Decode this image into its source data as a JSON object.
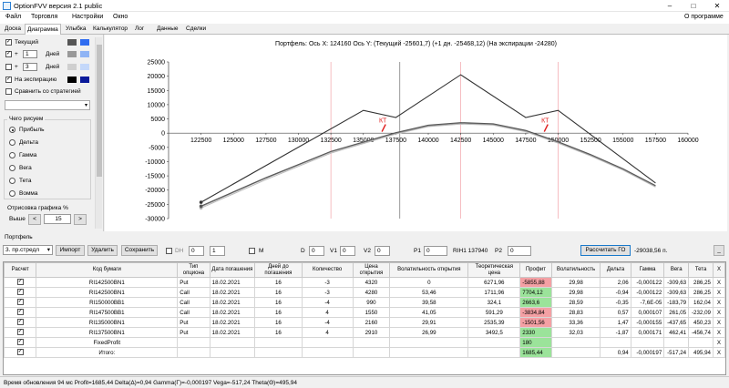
{
  "window": {
    "title": "OptionFVV версия 2.1 public",
    "minimize": "–",
    "maximize": "□",
    "close": "✕"
  },
  "menu": {
    "items": [
      "Файл",
      "Торговля",
      "Настройки",
      "Окно"
    ],
    "about": "О программе"
  },
  "tabs": [
    "Доска",
    "Диаграмма",
    "Улыбка",
    "Калькулятор",
    "Лог",
    "Данные",
    "Сделки"
  ],
  "tabs_active": 1,
  "left": {
    "rows": [
      {
        "label": "Текущий",
        "value": "",
        "unit": "",
        "colors": [
          "#555555",
          "#2f6cf0"
        ]
      },
      {
        "label": "+",
        "value": "1",
        "unit": "Дней",
        "colors": [
          "#999999",
          "#8fb4f5"
        ]
      },
      {
        "label": "+",
        "value": "3",
        "unit": "Дней",
        "colors": [
          "#cfcfcf",
          "#c4d8fa"
        ]
      },
      {
        "label": "На экспирацию",
        "value": "",
        "unit": "",
        "colors": [
          "#000000",
          "#0a1a9a"
        ]
      }
    ],
    "compare": "Сравнить со стратегией",
    "what_title": "Чего рисуем",
    "what_items": [
      "Прибыль",
      "Дельта",
      "Гамма",
      "Вега",
      "Тета",
      "Вомма"
    ],
    "render_title": "Отрисовка графика %",
    "above_label": "Выше",
    "above_value": "15",
    "prev": "<",
    "next": ">"
  },
  "chart_data": {
    "type": "line",
    "title": "Портфель: Ось X: 124160 Ось Y:  (Текущий -25601,7)  (+1 дн. -25468,12)  (На экспирации -24280)",
    "xlim": [
      120000,
      160000
    ],
    "ylim": [
      -30000,
      25000
    ],
    "x_ticks": [
      "122500",
      "125000",
      "127500",
      "130000",
      "132500",
      "135000",
      "137500",
      "140000",
      "142500",
      "145000",
      "147500",
      "150000",
      "152500",
      "155000",
      "157500",
      "160000"
    ],
    "y_ticks": [
      "25000",
      "20000",
      "15000",
      "10000",
      "5000",
      "0",
      "-5000",
      "-10000",
      "-15000",
      "-20000",
      "-25000",
      "-30000"
    ],
    "annotations": [
      {
        "text": "КТ",
        "x": 136500,
        "y": 5000
      },
      {
        "text": "КТ",
        "x": 149000,
        "y": 5000
      }
    ],
    "cursor_x": 137800,
    "ref_lines_x": [
      132500,
      142500,
      150000
    ],
    "series": [
      {
        "name": "На экспирации",
        "color": "#333333",
        "points": [
          [
            122500,
            -24280
          ],
          [
            135000,
            8000
          ],
          [
            137500,
            5500
          ],
          [
            142500,
            20500
          ],
          [
            147500,
            5500
          ],
          [
            150000,
            8000
          ],
          [
            157500,
            -17500
          ]
        ]
      },
      {
        "name": "+3 Дней",
        "color": "#bbbbbb",
        "points": [
          [
            122500,
            -26300
          ],
          [
            127500,
            -16300
          ],
          [
            132500,
            -7000
          ],
          [
            137500,
            -300
          ],
          [
            140000,
            2300
          ],
          [
            142500,
            3200
          ],
          [
            145000,
            2800
          ],
          [
            147500,
            500
          ],
          [
            150000,
            -3500
          ],
          [
            152500,
            -8000
          ],
          [
            155000,
            -13000
          ],
          [
            157500,
            -18900
          ]
        ]
      },
      {
        "name": "+1 Дней",
        "color": "#8a8a8a",
        "points": [
          [
            122500,
            -25800
          ],
          [
            127500,
            -15800
          ],
          [
            132500,
            -6600
          ],
          [
            137500,
            0
          ],
          [
            140000,
            2600
          ],
          [
            142500,
            3500
          ],
          [
            145000,
            3100
          ],
          [
            147500,
            800
          ],
          [
            150000,
            -3200
          ],
          [
            152500,
            -7700
          ],
          [
            155000,
            -12700
          ],
          [
            157500,
            -18600
          ]
        ]
      },
      {
        "name": "Текущий",
        "color": "#555555",
        "points": [
          [
            122500,
            -25600
          ],
          [
            127500,
            -15600
          ],
          [
            132500,
            -6400
          ],
          [
            137500,
            200
          ],
          [
            140000,
            2800
          ],
          [
            142500,
            3700
          ],
          [
            145000,
            3300
          ],
          [
            147500,
            1000
          ],
          [
            150000,
            -3000
          ],
          [
            152500,
            -7500
          ],
          [
            155000,
            -12500
          ],
          [
            157500,
            -18400
          ]
        ]
      }
    ]
  },
  "portfolio": {
    "label": "Портфель",
    "strategy": "3. пр.стредл",
    "import": "Импорт",
    "delete": "Удалить",
    "save": "Сохранить",
    "dh": "DH",
    "dh_v1": "0",
    "dh_v2": "1",
    "m": "M",
    "d_label": "D",
    "d": "0",
    "v1_label": "V1",
    "v1": "0",
    "v2_label": "V2",
    "v2": "0",
    "p1_label": "P1",
    "p1": "0",
    "ri_label": "RIH1 137940",
    "p2_label": "P2",
    "p2": "0",
    "calc": "Рассчитать ГО",
    "go": "-29038,56 п.",
    "extra": "_"
  },
  "grid": {
    "headers": [
      "Расчет",
      "Код бумаги",
      "Тип опциона",
      "Дата погашения",
      "Дней до погашения",
      "Количество",
      "Цена открытия",
      "Волатильность открытия",
      "Теоретическая цена",
      "Профит",
      "Волатильность",
      "Дельта",
      "Гамма",
      "Вега",
      "Тета",
      "X"
    ],
    "rows": [
      {
        "check": "✓",
        "code": "RI142500BN1",
        "type": "Put",
        "date": "18.02.2021",
        "days": "16",
        "qty": "-3",
        "price": "4320",
        "vol_open": "0",
        "theor": "6271,96",
        "profit": "-5855,88",
        "profit_sign": "neg",
        "vol": "29,98",
        "delta": "2,06",
        "gamma": "-0,000122",
        "vega": "-309,63",
        "theta": "286,25",
        "x": "X"
      },
      {
        "check": "✓",
        "code": "RI142500BN1",
        "type": "Call",
        "date": "18.02.2021",
        "days": "16",
        "qty": "-3",
        "price": "4280",
        "vol_open": "53,46",
        "theor": "1711,96",
        "profit": "7704,12",
        "profit_sign": "pos",
        "vol": "29,98",
        "delta": "-0,94",
        "gamma": "-0,000122",
        "vega": "-309,63",
        "theta": "286,25",
        "x": "X"
      },
      {
        "check": "✓",
        "code": "RI150000BB1",
        "type": "Call",
        "date": "18.02.2021",
        "days": "16",
        "qty": "-4",
        "price": "990",
        "vol_open": "39,58",
        "theor": "324,1",
        "profit": "2663,6",
        "profit_sign": "pos",
        "vol": "28,59",
        "delta": "-0,35",
        "gamma": "-7,6E-05",
        "vega": "-183,79",
        "theta": "162,04",
        "x": "X"
      },
      {
        "check": "✓",
        "code": "RI147500BB1",
        "type": "Call",
        "date": "18.02.2021",
        "days": "16",
        "qty": "4",
        "price": "1550",
        "vol_open": "41,05",
        "theor": "591,29",
        "profit": "-3834,84",
        "profit_sign": "neg",
        "vol": "28,83",
        "delta": "0,57",
        "gamma": "0,000107",
        "vega": "261,05",
        "theta": "-232,09",
        "x": "X"
      },
      {
        "check": "✓",
        "code": "RI135000BN1",
        "type": "Put",
        "date": "18.02.2021",
        "days": "16",
        "qty": "-4",
        "price": "2160",
        "vol_open": "29,91",
        "theor": "2535,39",
        "profit": "-1501,56",
        "profit_sign": "neg",
        "vol": "33,36",
        "delta": "1,47",
        "gamma": "-0,000155",
        "vega": "-437,65",
        "theta": "450,23",
        "x": "X"
      },
      {
        "check": "✓",
        "code": "RI137500BN1",
        "type": "Put",
        "date": "18.02.2021",
        "days": "16",
        "qty": "4",
        "price": "2910",
        "vol_open": "26,99",
        "theor": "3492,5",
        "profit": "2330",
        "profit_sign": "pos",
        "vol": "32,03",
        "delta": "-1,87",
        "gamma": "0,000171",
        "vega": "462,41",
        "theta": "-456,74",
        "x": "X"
      },
      {
        "check": "✓",
        "code": "FixedProfit",
        "type": "",
        "date": "",
        "days": "",
        "qty": "",
        "price": "",
        "vol_open": "",
        "theor": "",
        "profit": "180",
        "profit_sign": "pos",
        "vol": "",
        "delta": "",
        "gamma": "",
        "vega": "",
        "theta": "",
        "x": "X"
      },
      {
        "check": "✓",
        "code": "Итого:",
        "type": "",
        "date": "",
        "days": "",
        "qty": "",
        "price": "",
        "vol_open": "",
        "theor": "",
        "profit": "1685,44",
        "profit_sign": "pos",
        "vol": "",
        "delta": "0,94",
        "gamma": "-0,000197",
        "vega": "-517,24",
        "theta": "495,94",
        "x": "X"
      }
    ]
  },
  "status": "Время обновления 94 мс  Profit=1685,44 Delta(Δ)=0,94 Gamma(Γ)=-0,000197 Vega=-517,24 Theta(Θ)=495,94"
}
